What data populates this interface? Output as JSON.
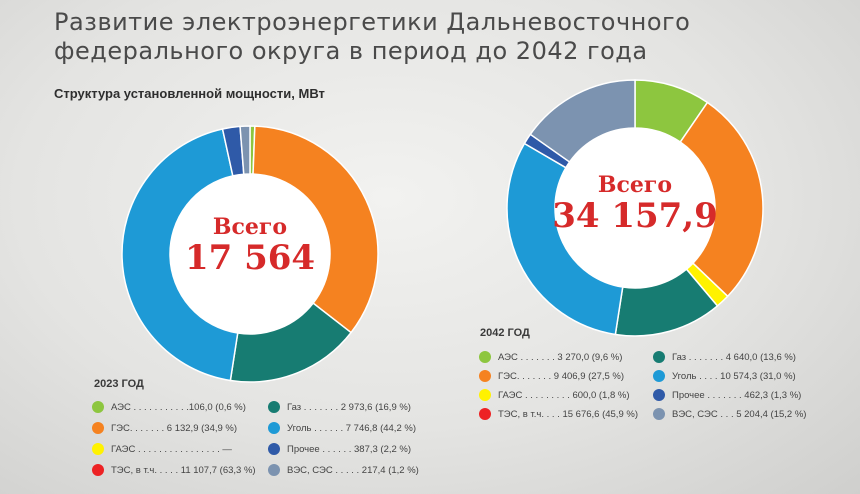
{
  "header": {
    "title": "Развитие электроэнергетики Дальневосточного федерального округа в период до 2042 года",
    "subtitle": "Структура установленной мощности, МВт"
  },
  "colors": {
    "aes": "#8dc63f",
    "ges": "#f58220",
    "gaes": "#fff200",
    "tes": "#ed2224",
    "gas": "#177c72",
    "coal": "#1e9ad6",
    "other": "#2f5aa8",
    "ves": "#7c93b0"
  },
  "charts": {
    "left": {
      "total_label": "Всего",
      "total_value": "17 564",
      "year_label": "2023 ГОД",
      "legend": [
        {
          "color_key": "aes",
          "text": "АЭС . . . . . . . . . . .106,0 (0,6 %)"
        },
        {
          "color_key": "ges",
          "text": "ГЭС. . . . . . . 6 132,9 (34,9 %)"
        },
        {
          "color_key": "gaes",
          "text": "ГАЭС . . . . . . . . . . . . . . . . —"
        },
        {
          "color_key": "tes",
          "text": "ТЭС, в т.ч. . . . . 11 107,7 (63,3 %)"
        },
        {
          "color_key": "gas",
          "text": "Газ . . . . . . . 2 973,6 (16,9 %)"
        },
        {
          "color_key": "coal",
          "text": "Уголь . . . . . . 7 746,8 (44,2 %)"
        },
        {
          "color_key": "other",
          "text": "Прочее . . . . . . 387,3 (2,2 %)"
        },
        {
          "color_key": "ves",
          "text": "ВЭС, СЭС . . . . . 217,4 (1,2 %)"
        }
      ]
    },
    "right": {
      "total_label": "Всего",
      "total_value": "34 157,9",
      "year_label": "2042 ГОД",
      "legend": [
        {
          "color_key": "aes",
          "text": "АЭС . . . . . . . 3 270,0 (9,6 %)"
        },
        {
          "color_key": "ges",
          "text": "ГЭС. . . . . . . 9 406,9 (27,5 %)"
        },
        {
          "color_key": "gaes",
          "text": "ГАЭС . . . . . . . . . 600,0 (1,8 %)"
        },
        {
          "color_key": "tes",
          "text": "ТЭС, в т.ч. . . . 15 676,6 (45,9 %)"
        },
        {
          "color_key": "gas",
          "text": "Газ . . . . . . . 4 640,0 (13,6 %)"
        },
        {
          "color_key": "coal",
          "text": "Уголь . . . . 10 574,3 (31,0 %)"
        },
        {
          "color_key": "other",
          "text": "Прочее . . . . . . . 462,3 (1,3 %)"
        },
        {
          "color_key": "ves",
          "text": "ВЭС, СЭС . . . 5 204,4 (15,2 %)"
        }
      ]
    }
  },
  "chart_data": [
    {
      "type": "pie",
      "style": "donut",
      "year": "2023 ГОД",
      "unit": "МВт",
      "total": 17564,
      "slices": [
        {
          "label": "АЭС",
          "value": 106.0,
          "percent": 0.6,
          "color_key": "aes"
        },
        {
          "label": "ГЭС",
          "value": 6132.9,
          "percent": 34.9,
          "color_key": "ges"
        },
        {
          "label": "ГАЭС",
          "value": 0,
          "percent": 0,
          "color_key": "gaes"
        },
        {
          "label": "Газ",
          "value": 2973.6,
          "percent": 16.9,
          "color_key": "gas"
        },
        {
          "label": "Уголь",
          "value": 7746.8,
          "percent": 44.2,
          "color_key": "coal"
        },
        {
          "label": "Прочее",
          "value": 387.3,
          "percent": 2.2,
          "color_key": "other"
        },
        {
          "label": "ВЭС, СЭС",
          "value": 217.4,
          "percent": 1.2,
          "color_key": "ves"
        }
      ],
      "group_total": {
        "label": "ТЭС, в т.ч.",
        "value": 11107.7,
        "percent": 63.3
      }
    },
    {
      "type": "pie",
      "style": "donut",
      "year": "2042 ГОД",
      "unit": "МВт",
      "total": 34157.9,
      "slices": [
        {
          "label": "АЭС",
          "value": 3270.0,
          "percent": 9.6,
          "color_key": "aes"
        },
        {
          "label": "ГЭС",
          "value": 9406.9,
          "percent": 27.5,
          "color_key": "ges"
        },
        {
          "label": "ГАЭС",
          "value": 600.0,
          "percent": 1.8,
          "color_key": "gaes"
        },
        {
          "label": "Газ",
          "value": 4640.0,
          "percent": 13.6,
          "color_key": "gas"
        },
        {
          "label": "Уголь",
          "value": 10574.3,
          "percent": 31.0,
          "color_key": "coal"
        },
        {
          "label": "Прочее",
          "value": 462.3,
          "percent": 1.3,
          "color_key": "other"
        },
        {
          "label": "ВЭС, СЭС",
          "value": 5204.4,
          "percent": 15.2,
          "color_key": "ves"
        }
      ],
      "group_total": {
        "label": "ТЭС, в т.ч.",
        "value": 15676.6,
        "percent": 45.9
      }
    }
  ]
}
